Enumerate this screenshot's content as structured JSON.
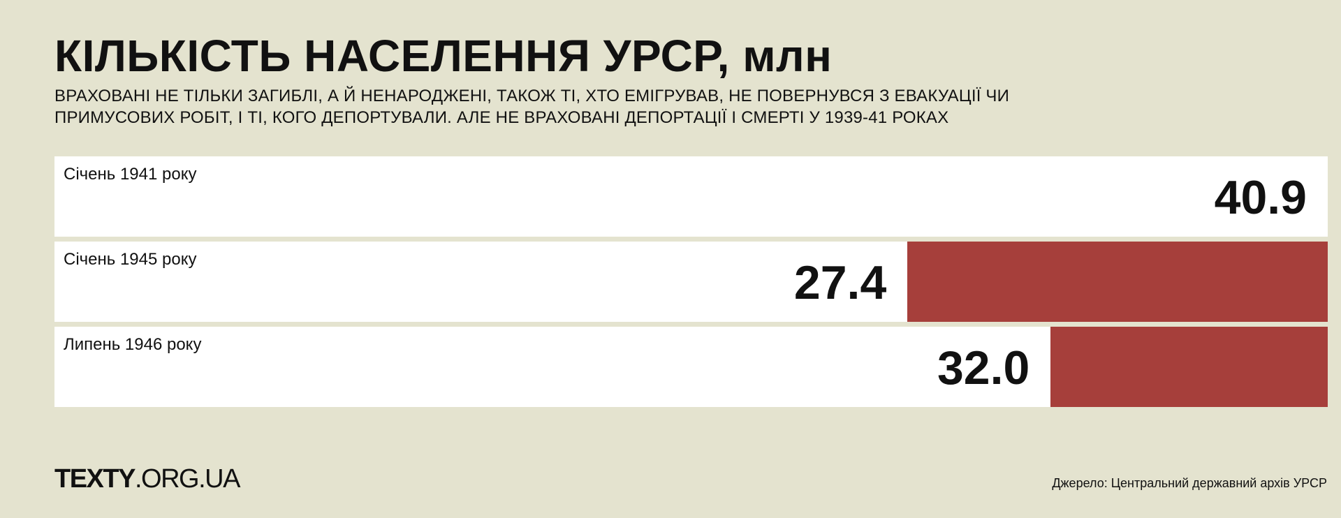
{
  "header": {
    "title": "КІЛЬКІСТЬ НАСЕЛЕННЯ УРСР, млн",
    "subtitle": "ВРАХОВАНІ НЕ ТІЛЬКИ ЗАГИБЛІ, А Й НЕНАРОДЖЕНІ, ТАКОЖ ТІ, ХТО ЕМІГРУВАВ, НЕ ПОВЕРНУВСЯ З ЕВАКУАЦІЇ ЧИ ПРИМУСОВИХ РОБІТ, І ТІ, КОГО ДЕПОРТУВАЛИ. АЛЕ НЕ ВРАХОВАНІ ДЕПОРТАЦІЇ І СМЕРТІ У 1939-41 РОКАХ"
  },
  "chart_data": {
    "type": "bar",
    "orientation": "horizontal",
    "categories": [
      "Січень 1941 року",
      "Січень 1945 року",
      "Липень 1946 року"
    ],
    "values": [
      40.9,
      27.4,
      32.0
    ],
    "value_labels": [
      "40.9",
      "27.4",
      "32.0"
    ],
    "reference_value": 40.9,
    "xlim": [
      0,
      40.9
    ],
    "grid": false,
    "colors": {
      "bar": "#ffffff",
      "loss": "#a63f3b",
      "background": "#e4e3cf"
    }
  },
  "footer": {
    "logo_bold": "TEXTY",
    "logo_rest": ".ORG.UA",
    "source": "Джерело: Центральний державний архів УРСР"
  }
}
